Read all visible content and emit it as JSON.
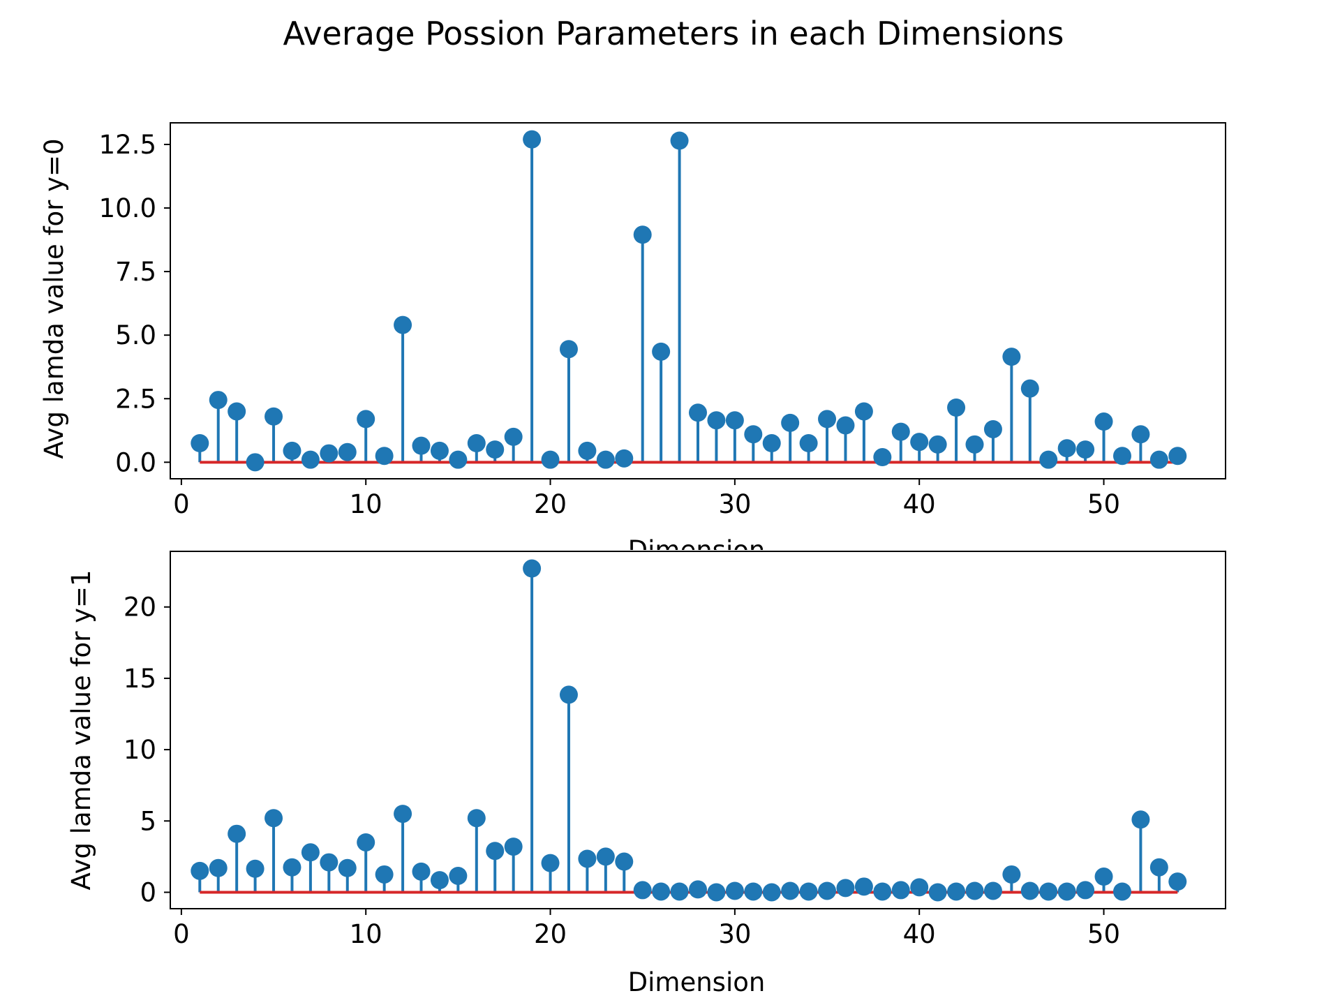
{
  "figure": {
    "suptitle": "Average Possion Parameters in each Dimensions"
  },
  "colors": {
    "marker": "#1f77b4",
    "baseline": "#d62728",
    "axes": "#000000",
    "background": "#ffffff"
  },
  "chart_data": [
    {
      "type": "stem",
      "xlabel": "Dimension",
      "ylabel": "Avg lamda value for y=0",
      "xlim": [
        -0.6,
        56.6
      ],
      "ylim": [
        -0.65,
        13.35
      ],
      "xticks": [
        0,
        10,
        20,
        30,
        40,
        50
      ],
      "yticks": [
        0.0,
        2.5,
        5.0,
        7.5,
        10.0,
        12.5
      ],
      "ytick_labels": [
        "0.0",
        "2.5",
        "5.0",
        "7.5",
        "10.0",
        "12.5"
      ],
      "xtick_labels": [
        "0",
        "10",
        "20",
        "30",
        "40",
        "50"
      ],
      "baseline": 0,
      "x": [
        1,
        2,
        3,
        4,
        5,
        6,
        7,
        8,
        9,
        10,
        11,
        12,
        13,
        14,
        15,
        16,
        17,
        18,
        19,
        20,
        21,
        22,
        23,
        24,
        25,
        26,
        27,
        28,
        29,
        30,
        31,
        32,
        33,
        34,
        35,
        36,
        37,
        38,
        39,
        40,
        41,
        42,
        43,
        44,
        45,
        46,
        47,
        48,
        49,
        50,
        51,
        52,
        53,
        54
      ],
      "values": [
        0.75,
        2.45,
        2.0,
        0.0,
        1.8,
        0.45,
        0.1,
        0.35,
        0.4,
        1.7,
        0.25,
        5.4,
        0.65,
        0.45,
        0.1,
        0.75,
        0.5,
        1.0,
        12.7,
        0.1,
        4.45,
        0.45,
        0.1,
        0.15,
        8.95,
        4.35,
        12.65,
        1.95,
        1.65,
        1.65,
        1.1,
        0.75,
        1.55,
        0.75,
        1.7,
        1.45,
        2.0,
        0.2,
        1.2,
        0.8,
        0.7,
        2.15,
        0.7,
        1.3,
        4.15,
        2.9,
        0.1,
        0.55,
        0.5,
        1.6,
        0.25,
        1.1,
        0.1,
        0.25
      ]
    },
    {
      "type": "stem",
      "xlabel": "Dimension",
      "ylabel": "Avg lamda value for y=1",
      "xlim": [
        -0.6,
        56.6
      ],
      "ylim": [
        -1.15,
        23.9
      ],
      "xticks": [
        0,
        10,
        20,
        30,
        40,
        50
      ],
      "yticks": [
        0,
        5,
        10,
        15,
        20
      ],
      "ytick_labels": [
        "0",
        "5",
        "10",
        "15",
        "20"
      ],
      "xtick_labels": [
        "0",
        "10",
        "20",
        "30",
        "40",
        "50"
      ],
      "baseline": 0,
      "x": [
        1,
        2,
        3,
        4,
        5,
        6,
        7,
        8,
        9,
        10,
        11,
        12,
        13,
        14,
        15,
        16,
        17,
        18,
        19,
        20,
        21,
        22,
        23,
        24,
        25,
        26,
        27,
        28,
        29,
        30,
        31,
        32,
        33,
        34,
        35,
        36,
        37,
        38,
        39,
        40,
        41,
        42,
        43,
        44,
        45,
        46,
        47,
        48,
        49,
        50,
        51,
        52,
        53,
        54
      ],
      "values": [
        1.5,
        1.7,
        4.1,
        1.65,
        5.2,
        1.75,
        2.8,
        2.1,
        1.7,
        3.5,
        1.25,
        5.5,
        1.45,
        0.85,
        1.15,
        5.2,
        2.9,
        3.2,
        22.7,
        2.05,
        13.85,
        2.35,
        2.5,
        2.15,
        0.15,
        0.05,
        0.05,
        0.2,
        0.0,
        0.1,
        0.05,
        0.0,
        0.1,
        0.05,
        0.1,
        0.3,
        0.4,
        0.05,
        0.15,
        0.35,
        0.0,
        0.05,
        0.1,
        0.1,
        1.25,
        0.1,
        0.05,
        0.05,
        0.15,
        1.1,
        0.05,
        5.1,
        1.75,
        0.75
      ]
    }
  ]
}
